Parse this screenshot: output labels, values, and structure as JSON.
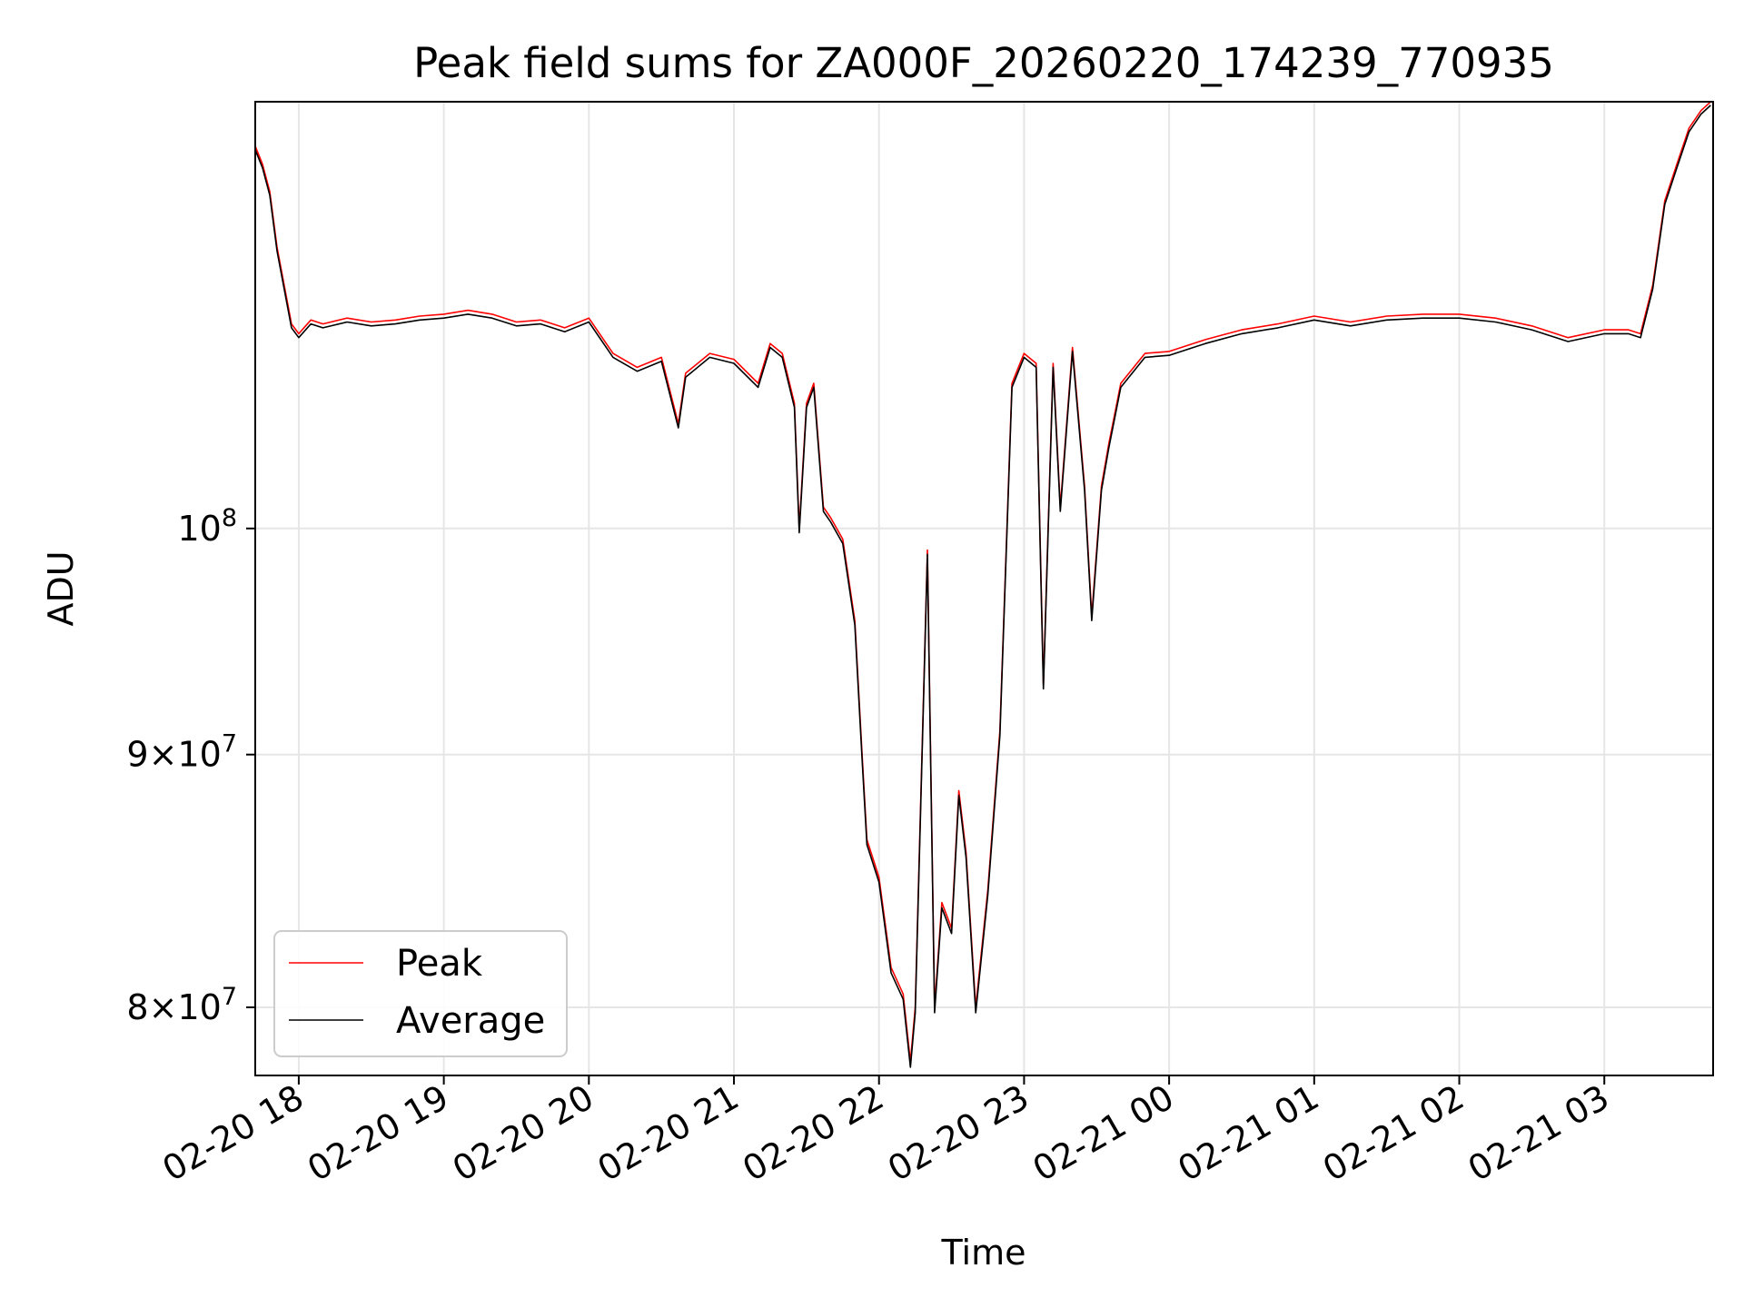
{
  "chart_data": {
    "type": "line",
    "title": "Peak field sums for ZA000F_20260220_174239_770935",
    "xlabel": "Time",
    "ylabel": "ADU",
    "y_scale": "log",
    "ylim": [
      77500000,
      122000000
    ],
    "xlim": [
      "2026-02-20 17:42",
      "2026-02-21 03:45"
    ],
    "grid": true,
    "legend_position": "lower-left",
    "x_ticks": [
      "02-20 18",
      "02-20 19",
      "02-20 20",
      "02-20 21",
      "02-20 22",
      "02-20 23",
      "02-21 00",
      "02-21 01",
      "02-21 02",
      "02-21 03"
    ],
    "y_ticks": [
      {
        "value": 80000000,
        "mantissa": "8",
        "exponent": "7"
      },
      {
        "value": 90000000,
        "mantissa": "9",
        "exponent": "7"
      },
      {
        "value": 100000000,
        "mantissa": "",
        "exponent": "8"
      }
    ],
    "y_tick_base": "10",
    "y_tick_times": "×",
    "series": [
      {
        "name": "Peak",
        "color": "#ff0000",
        "x": [
          "2026-02-20 17:42",
          "2026-02-20 17:45",
          "2026-02-20 17:48",
          "2026-02-20 17:51",
          "2026-02-20 17:54",
          "2026-02-20 17:57",
          "2026-02-20 18:00",
          "2026-02-20 18:05",
          "2026-02-20 18:10",
          "2026-02-20 18:20",
          "2026-02-20 18:30",
          "2026-02-20 18:40",
          "2026-02-20 18:50",
          "2026-02-20 19:00",
          "2026-02-20 19:10",
          "2026-02-20 19:20",
          "2026-02-20 19:30",
          "2026-02-20 19:40",
          "2026-02-20 19:50",
          "2026-02-20 20:00",
          "2026-02-20 20:10",
          "2026-02-20 20:20",
          "2026-02-20 20:30",
          "2026-02-20 20:37",
          "2026-02-20 20:40",
          "2026-02-20 20:50",
          "2026-02-20 21:00",
          "2026-02-20 21:10",
          "2026-02-20 21:15",
          "2026-02-20 21:20",
          "2026-02-20 21:25",
          "2026-02-20 21:27",
          "2026-02-20 21:30",
          "2026-02-20 21:33",
          "2026-02-20 21:37",
          "2026-02-20 21:40",
          "2026-02-20 21:45",
          "2026-02-20 21:50",
          "2026-02-20 21:53",
          "2026-02-20 21:55",
          "2026-02-20 22:00",
          "2026-02-20 22:05",
          "2026-02-20 22:10",
          "2026-02-20 22:13",
          "2026-02-20 22:15",
          "2026-02-20 22:20",
          "2026-02-20 22:23",
          "2026-02-20 22:26",
          "2026-02-20 22:30",
          "2026-02-20 22:33",
          "2026-02-20 22:36",
          "2026-02-20 22:40",
          "2026-02-20 22:45",
          "2026-02-20 22:50",
          "2026-02-20 22:55",
          "2026-02-20 23:00",
          "2026-02-20 23:05",
          "2026-02-20 23:08",
          "2026-02-20 23:12",
          "2026-02-20 23:15",
          "2026-02-20 23:20",
          "2026-02-20 23:25",
          "2026-02-20 23:28",
          "2026-02-20 23:32",
          "2026-02-20 23:35",
          "2026-02-20 23:40",
          "2026-02-20 23:50",
          "2026-02-21 00:00",
          "2026-02-21 00:15",
          "2026-02-21 00:30",
          "2026-02-21 00:45",
          "2026-02-21 01:00",
          "2026-02-21 01:15",
          "2026-02-21 01:30",
          "2026-02-21 01:45",
          "2026-02-21 02:00",
          "2026-02-21 02:15",
          "2026-02-21 02:30",
          "2026-02-21 02:45",
          "2026-02-21 03:00",
          "2026-02-21 03:10",
          "2026-02-21 03:15",
          "2026-02-21 03:20",
          "2026-02-21 03:25",
          "2026-02-21 03:30",
          "2026-02-21 03:35",
          "2026-02-21 03:40",
          "2026-02-21 03:44"
        ],
        "values": [
          119500000,
          118500000,
          117000000,
          114000000,
          112000000,
          110000000,
          109500000,
          110200000,
          110000000,
          110300000,
          110100000,
          110200000,
          110400000,
          110500000,
          110700000,
          110500000,
          110100000,
          110200000,
          109800000,
          110300000,
          108500000,
          107800000,
          108300000,
          105000000,
          107500000,
          108500000,
          108200000,
          107000000,
          109000000,
          108500000,
          106000000,
          100000000,
          106000000,
          107000000,
          101000000,
          100500000,
          99500000,
          95800000,
          90000000,
          86500000,
          85000000,
          81500000,
          80500000,
          78000000,
          80000000,
          99000000,
          80000000,
          84000000,
          83000000,
          88500000,
          86000000,
          80000000,
          84500000,
          91000000,
          107000000,
          108500000,
          108000000,
          93000000,
          108000000,
          101000000,
          108800000,
          102000000,
          96000000,
          102000000,
          104000000,
          107000000,
          108500000,
          108600000,
          109200000,
          109700000,
          110000000,
          110400000,
          110100000,
          110400000,
          110500000,
          110500000,
          110300000,
          109900000,
          109300000,
          109700000,
          109700000,
          109500000,
          112000000,
          116500000,
          118500000,
          120500000,
          121500000,
          122000000
        ]
      },
      {
        "name": "Average",
        "color": "#000000",
        "x": [
          "2026-02-20 17:42",
          "2026-02-20 17:45",
          "2026-02-20 17:48",
          "2026-02-20 17:51",
          "2026-02-20 17:54",
          "2026-02-20 17:57",
          "2026-02-20 18:00",
          "2026-02-20 18:05",
          "2026-02-20 18:10",
          "2026-02-20 18:20",
          "2026-02-20 18:30",
          "2026-02-20 18:40",
          "2026-02-20 18:50",
          "2026-02-20 19:00",
          "2026-02-20 19:10",
          "2026-02-20 19:20",
          "2026-02-20 19:30",
          "2026-02-20 19:40",
          "2026-02-20 19:50",
          "2026-02-20 20:00",
          "2026-02-20 20:10",
          "2026-02-20 20:20",
          "2026-02-20 20:30",
          "2026-02-20 20:37",
          "2026-02-20 20:40",
          "2026-02-20 20:50",
          "2026-02-20 21:00",
          "2026-02-20 21:10",
          "2026-02-20 21:15",
          "2026-02-20 21:20",
          "2026-02-20 21:25",
          "2026-02-20 21:27",
          "2026-02-20 21:30",
          "2026-02-20 21:33",
          "2026-02-20 21:37",
          "2026-02-20 21:40",
          "2026-02-20 21:45",
          "2026-02-20 21:50",
          "2026-02-20 21:53",
          "2026-02-20 21:55",
          "2026-02-20 22:00",
          "2026-02-20 22:05",
          "2026-02-20 22:10",
          "2026-02-20 22:13",
          "2026-02-20 22:15",
          "2026-02-20 22:20",
          "2026-02-20 22:23",
          "2026-02-20 22:26",
          "2026-02-20 22:30",
          "2026-02-20 22:33",
          "2026-02-20 22:36",
          "2026-02-20 22:40",
          "2026-02-20 22:45",
          "2026-02-20 22:50",
          "2026-02-20 22:55",
          "2026-02-20 23:00",
          "2026-02-20 23:05",
          "2026-02-20 23:08",
          "2026-02-20 23:12",
          "2026-02-20 23:15",
          "2026-02-20 23:20",
          "2026-02-20 23:25",
          "2026-02-20 23:28",
          "2026-02-20 23:32",
          "2026-02-20 23:35",
          "2026-02-20 23:40",
          "2026-02-20 23:50",
          "2026-02-21 00:00",
          "2026-02-21 00:15",
          "2026-02-21 00:30",
          "2026-02-21 00:45",
          "2026-02-21 01:00",
          "2026-02-21 01:15",
          "2026-02-21 01:30",
          "2026-02-21 01:45",
          "2026-02-21 02:00",
          "2026-02-21 02:15",
          "2026-02-21 02:30",
          "2026-02-21 02:45",
          "2026-02-21 03:00",
          "2026-02-21 03:10",
          "2026-02-21 03:15",
          "2026-02-21 03:20",
          "2026-02-21 03:25",
          "2026-02-21 03:30",
          "2026-02-21 03:35",
          "2026-02-21 03:40",
          "2026-02-21 03:44"
        ],
        "values": [
          119300000,
          118300000,
          116800000,
          113800000,
          111800000,
          109800000,
          109300000,
          110000000,
          109800000,
          110100000,
          109900000,
          110000000,
          110200000,
          110300000,
          110500000,
          110300000,
          109900000,
          110000000,
          109600000,
          110100000,
          108300000,
          107600000,
          108100000,
          104800000,
          107300000,
          108300000,
          108000000,
          106800000,
          108800000,
          108300000,
          105800000,
          99800000,
          105800000,
          106800000,
          100800000,
          100300000,
          99300000,
          95600000,
          89800000,
          86300000,
          84800000,
          81300000,
          80300000,
          77800000,
          79800000,
          98800000,
          79800000,
          83800000,
          82800000,
          88300000,
          85800000,
          79800000,
          84300000,
          90800000,
          106800000,
          108300000,
          107800000,
          92800000,
          107800000,
          100800000,
          108600000,
          101800000,
          95800000,
          101800000,
          103800000,
          106800000,
          108300000,
          108400000,
          109000000,
          109500000,
          109800000,
          110200000,
          109900000,
          110200000,
          110300000,
          110300000,
          110100000,
          109700000,
          109100000,
          109500000,
          109500000,
          109300000,
          111800000,
          116300000,
          118300000,
          120300000,
          121300000,
          121800000
        ]
      }
    ]
  }
}
